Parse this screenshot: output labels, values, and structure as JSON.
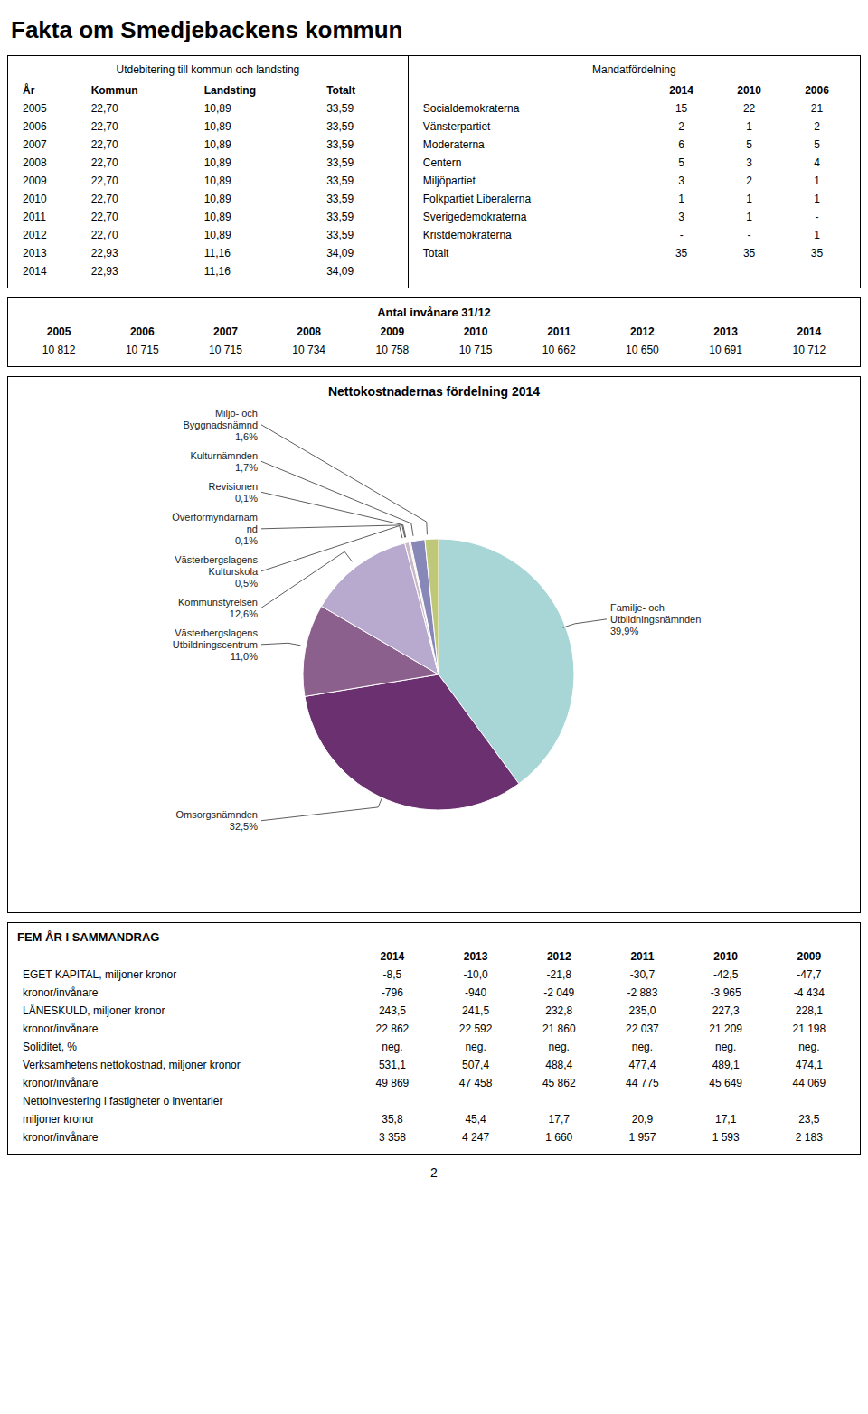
{
  "chart_data": [
    {
      "type": "page",
      "title": "Fakta om Smedjebackens kommun",
      "annotations": [
        "2"
      ]
    },
    {
      "type": "table",
      "title": "Utdebitering till kommun och landsting",
      "columns": [
        "År",
        "Kommun",
        "Landsting",
        "Totalt"
      ],
      "rows": [
        [
          "2005",
          "22,70",
          "10,89",
          "33,59"
        ],
        [
          "2006",
          "22,70",
          "10,89",
          "33,59"
        ],
        [
          "2007",
          "22,70",
          "10,89",
          "33,59"
        ],
        [
          "2008",
          "22,70",
          "10,89",
          "33,59"
        ],
        [
          "2009",
          "22,70",
          "10,89",
          "33,59"
        ],
        [
          "2010",
          "22,70",
          "10,89",
          "33,59"
        ],
        [
          "2011",
          "22,70",
          "10,89",
          "33,59"
        ],
        [
          "2012",
          "22,70",
          "10,89",
          "33,59"
        ],
        [
          "2013",
          "22,93",
          "11,16",
          "34,09"
        ],
        [
          "2014",
          "22,93",
          "11,16",
          "34,09"
        ]
      ]
    },
    {
      "type": "table",
      "title": "Mandatfördelning",
      "columns": [
        "2014",
        "2010",
        "2006"
      ],
      "rows": [
        [
          "Socialdemokraterna",
          "15",
          "22",
          "21"
        ],
        [
          "Vänsterpartiet",
          "2",
          "1",
          "2"
        ],
        [
          "Moderaterna",
          "6",
          "5",
          "5"
        ],
        [
          "Centern",
          "5",
          "3",
          "4"
        ],
        [
          "Miljöpartiet",
          "3",
          "2",
          "1"
        ],
        [
          "Folkpartiet Liberalerna",
          "1",
          "1",
          "1"
        ],
        [
          "Sverigedemokraterna",
          "3",
          "1",
          "-"
        ],
        [
          "Kristdemokraterna",
          "-",
          "-",
          "1"
        ],
        [
          "Totalt",
          "35",
          "35",
          "35"
        ]
      ]
    },
    {
      "type": "table",
      "title": "Antal invånare 31/12",
      "columns": [
        "2005",
        "2006",
        "2007",
        "2008",
        "2009",
        "2010",
        "2011",
        "2012",
        "2013",
        "2014"
      ],
      "rows": [
        [
          "10 812",
          "10 715",
          "10 715",
          "10 734",
          "10 758",
          "10 715",
          "10 662",
          "10 650",
          "10 691",
          "10 712"
        ]
      ]
    },
    {
      "type": "pie",
      "title": "Nettokostnadernas fördelning 2014",
      "categories": [
        "Familje- och\nUtbildningsnämnden",
        "Omsorgsnämnden",
        "Västerbergslagens\nUtbildningscentrum",
        "Kommunstyrelsen",
        "Västerbergslagens\nKulturskola",
        "Överförmyndarnäm\nnd",
        "Revisionen",
        "Kulturnämnden",
        "Miljö- och\nByggnadsnämnd"
      ],
      "values": [
        39.9,
        32.5,
        11.0,
        12.6,
        0.5,
        0.1,
        0.1,
        1.7,
        1.6
      ],
      "value_labels": [
        "39,9%",
        "32,5%",
        "11,0%",
        "12,6%",
        "0,5%",
        "0,1%",
        "0,1%",
        "1,7%",
        "1,6%"
      ],
      "colors": [
        "#a8d5d5",
        "#6b3070",
        "#8c608c",
        "#b8aace",
        "#c8b8c8",
        "#b89050",
        "#9a7048",
        "#8888b8",
        "#bec878"
      ]
    },
    {
      "type": "table",
      "title": "FEM ÅR I SAMMANDRAG",
      "columns": [
        "2014",
        "2013",
        "2012",
        "2011",
        "2010",
        "2009"
      ],
      "rows": [
        [
          "EGET KAPITAL, miljoner kronor",
          "-8,5",
          "-10,0",
          "-21,8",
          "-30,7",
          "-42,5",
          "-47,7"
        ],
        [
          "kronor/invånare",
          "-796",
          "-940",
          "-2 049",
          "-2 883",
          "-3 965",
          "-4 434"
        ],
        [
          "LÅNESKULD, miljoner kronor",
          "243,5",
          "241,5",
          "232,8",
          "235,0",
          "227,3",
          "228,1"
        ],
        [
          "kronor/invånare",
          "22 862",
          "22 592",
          "21 860",
          "22 037",
          "21 209",
          "21 198"
        ],
        [
          "Soliditet, %",
          "neg.",
          "neg.",
          "neg.",
          "neg.",
          "neg.",
          "neg."
        ],
        [
          "Verksamhetens nettokostnad, miljoner kronor",
          "531,1",
          "507,4",
          "488,4",
          "477,4",
          "489,1",
          "474,1"
        ],
        [
          "kronor/invånare",
          "49 869",
          "47 458",
          "45 862",
          "44 775",
          "45 649",
          "44 069"
        ],
        [
          "Nettoinvestering i fastigheter o inventarier"
        ],
        [
          "miljoner kronor",
          "35,8",
          "45,4",
          "17,7",
          "20,9",
          "17,1",
          "23,5"
        ],
        [
          "kronor/invånare",
          "3 358",
          "4 247",
          "1 660",
          "1 957",
          "1 593",
          "2 183"
        ]
      ]
    }
  ]
}
